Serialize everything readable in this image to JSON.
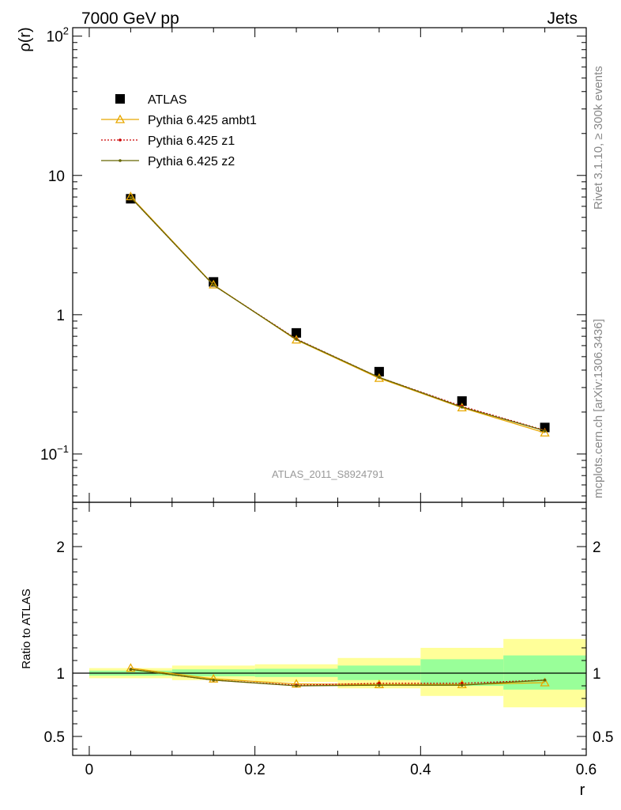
{
  "header": {
    "left": "7000 GeV pp",
    "right": "Jets"
  },
  "side_labels": {
    "top": "Rivet 3.1.10, ≥ 300k events",
    "bottom": "mcplots.cern.ch [arXiv:1306.3436]"
  },
  "watermark": "ATLAS_2011_S8924791",
  "colors": {
    "data": "#000000",
    "ambt1": "#e8a800",
    "z1": "#cc0000",
    "z2": "#666600",
    "band_inner": "#99ff99",
    "band_outer": "#ffff99"
  },
  "chart_data": [
    {
      "type": "line",
      "panel": "main",
      "ylabel": "ρ(r)",
      "xlim": [
        -0.02,
        0.6
      ],
      "ylim": [
        0.045,
        115
      ],
      "yscale": "log",
      "y_ticks": [
        {
          "value": 100,
          "label": "10",
          "sup": "2"
        },
        {
          "value": 10,
          "label": "10",
          "sup": ""
        },
        {
          "value": 1,
          "label": "1",
          "sup": ""
        },
        {
          "value": 0.1,
          "label": "10",
          "sup": "−1"
        }
      ],
      "legend_position": "top-left",
      "x": [
        0.05,
        0.15,
        0.25,
        0.35,
        0.45,
        0.55
      ],
      "series": [
        {
          "name": "ATLAS",
          "marker": "square",
          "values": [
            6.8,
            1.72,
            0.74,
            0.39,
            0.24,
            0.155
          ]
        },
        {
          "name": "Pythia 6.425 ambt1",
          "marker": "triangle",
          "values": [
            7.05,
            1.64,
            0.66,
            0.35,
            0.215,
            0.142
          ]
        },
        {
          "name": "Pythia 6.425 z1",
          "marker": "dot",
          "values": [
            6.95,
            1.63,
            0.67,
            0.355,
            0.22,
            0.148
          ]
        },
        {
          "name": "Pythia 6.425 z2",
          "marker": "dot",
          "values": [
            6.95,
            1.63,
            0.665,
            0.355,
            0.217,
            0.147
          ]
        }
      ]
    },
    {
      "type": "line",
      "panel": "ratio",
      "xlabel": "r",
      "ylabel": "Ratio to ATLAS",
      "xlim": [
        -0.02,
        0.6
      ],
      "ylim": [
        0.35,
        2.35
      ],
      "x_ticks": [
        {
          "value": 0,
          "label": "0"
        },
        {
          "value": 0.2,
          "label": "0.2"
        },
        {
          "value": 0.4,
          "label": "0.4"
        },
        {
          "value": 0.6,
          "label": "0.6"
        }
      ],
      "y_ticks": [
        {
          "value": 2,
          "label": "2"
        },
        {
          "value": 1,
          "label": "1"
        },
        {
          "value": 0.5,
          "label": "0.5"
        }
      ],
      "bands": [
        {
          "x0": 0.0,
          "x1": 0.1,
          "inner": [
            0.98,
            1.02
          ],
          "outer": [
            0.96,
            1.04
          ]
        },
        {
          "x0": 0.1,
          "x1": 0.2,
          "inner": [
            0.975,
            1.03
          ],
          "outer": [
            0.945,
            1.06
          ]
        },
        {
          "x0": 0.2,
          "x1": 0.3,
          "inner": [
            0.97,
            1.035
          ],
          "outer": [
            0.93,
            1.07
          ]
        },
        {
          "x0": 0.3,
          "x1": 0.4,
          "inner": [
            0.945,
            1.06
          ],
          "outer": [
            0.88,
            1.12
          ]
        },
        {
          "x0": 0.4,
          "x1": 0.5,
          "inner": [
            0.9,
            1.11
          ],
          "outer": [
            0.82,
            1.2
          ]
        },
        {
          "x0": 0.5,
          "x1": 0.6,
          "inner": [
            0.87,
            1.14
          ],
          "outer": [
            0.73,
            1.27
          ]
        }
      ],
      "x": [
        0.05,
        0.15,
        0.25,
        0.35,
        0.45,
        0.55
      ],
      "series": [
        {
          "name": "Pythia 6.425 ambt1",
          "marker": "triangle",
          "values": [
            1.04,
            0.955,
            0.915,
            0.91,
            0.91,
            0.925
          ]
        },
        {
          "name": "Pythia 6.425 z1",
          "marker": "dot",
          "values": [
            1.03,
            0.945,
            0.905,
            0.92,
            0.92,
            0.945
          ]
        },
        {
          "name": "Pythia 6.425 z2",
          "marker": "dot",
          "values": [
            1.03,
            0.945,
            0.9,
            0.905,
            0.905,
            0.945
          ]
        }
      ]
    }
  ]
}
